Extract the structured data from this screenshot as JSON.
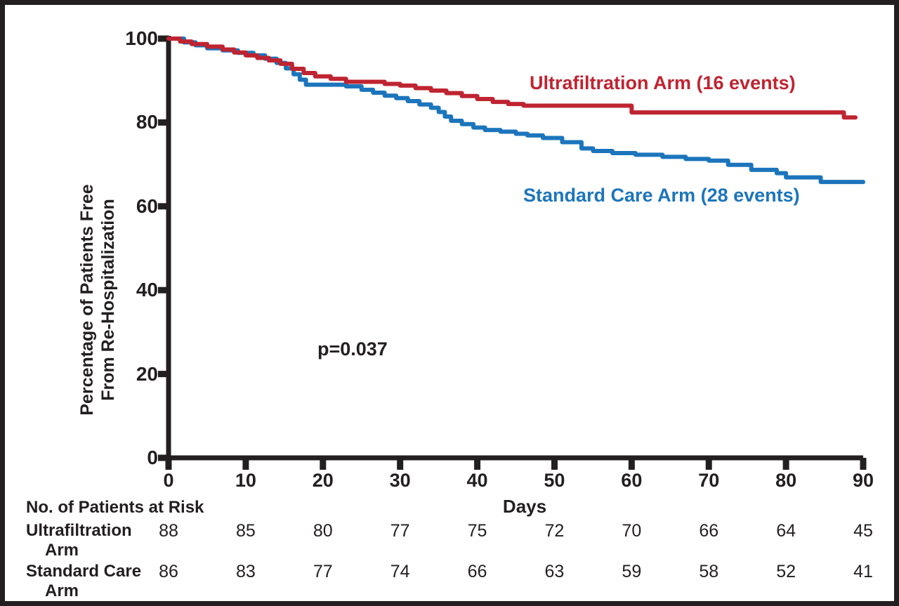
{
  "colors": {
    "ink": "#231f20",
    "red": "#bf2431",
    "blue": "#1c75bc",
    "background": "#ffffff"
  },
  "chart_data": {
    "type": "line",
    "subtype": "kaplan-meier-step",
    "title": "",
    "xlabel": "Days",
    "ylabel_line1": "Percentage of Patients Free",
    "ylabel_line2": "From Re-Hospitalization",
    "xlim": [
      0,
      90
    ],
    "ylim": [
      0,
      100
    ],
    "x_ticks": [
      0,
      10,
      20,
      30,
      40,
      50,
      60,
      70,
      80,
      90
    ],
    "y_ticks": [
      0,
      20,
      40,
      60,
      80,
      100
    ],
    "grid": "off",
    "legend_position": "inline-curve-labels",
    "annotation": "p=0.037",
    "series": [
      {
        "name": "Ultrafiltration Arm",
        "label": "Ultrafiltration Arm (16 events)",
        "events": 16,
        "color": "#bf2431",
        "x_end": 89,
        "x": [
          0,
          1.5,
          3,
          5,
          7,
          8.5,
          10,
          11.5,
          13,
          14.5,
          16,
          17.5,
          19,
          21,
          23,
          28,
          30,
          32,
          34,
          36,
          38,
          40,
          42,
          44,
          46,
          60,
          87.5
        ],
        "y": [
          100,
          99.3,
          98.7,
          98.1,
          97.4,
          96.7,
          96,
          95.4,
          94.8,
          94,
          92.8,
          91.8,
          91,
          90.4,
          89.7,
          89.2,
          88.8,
          88.2,
          87.6,
          87,
          86.3,
          85.6,
          84.9,
          84.4,
          84,
          82.4,
          81.2
        ]
      },
      {
        "name": "Standard Care Arm",
        "label": "Standard Care Arm (28 events)",
        "events": 28,
        "color": "#1c75bc",
        "x_end": 90,
        "x": [
          0,
          2,
          3.5,
          5,
          7,
          9,
          11,
          12.5,
          14,
          15.2,
          16.2,
          17,
          17.8,
          23,
          25,
          26.5,
          28,
          29.5,
          31,
          32.5,
          34,
          35,
          35.8,
          36.6,
          38,
          39.5,
          41,
          43,
          45,
          46.5,
          48.5,
          51,
          53.5,
          55,
          57.5,
          60.5,
          64,
          67,
          70,
          72.5,
          75.5,
          78.8,
          80,
          84.5
        ],
        "y": [
          100,
          99.1,
          98.4,
          97.7,
          97.2,
          96.6,
          96,
          95.2,
          94.2,
          92.9,
          91.5,
          90.2,
          89,
          88.6,
          87.8,
          87.1,
          86.4,
          85.8,
          85.1,
          84.3,
          83.5,
          82.5,
          81.4,
          80.4,
          79.6,
          78.8,
          78.2,
          77.8,
          77.3,
          76.9,
          76.3,
          75.3,
          73.8,
          73.2,
          72.7,
          72.3,
          71.8,
          71.3,
          70.9,
          69.9,
          68.7,
          67.9,
          66.9,
          65.8
        ]
      }
    ]
  },
  "risk_table": {
    "title": "No. of Patients at Risk",
    "days": [
      0,
      10,
      20,
      30,
      40,
      50,
      60,
      70,
      80,
      90
    ],
    "rows": [
      {
        "label_line1": "Ultrafiltration",
        "label_line2": "Arm",
        "counts": [
          88,
          85,
          80,
          77,
          75,
          72,
          70,
          66,
          64,
          45
        ]
      },
      {
        "label_line1": "Standard Care",
        "label_line2": "Arm",
        "counts": [
          86,
          83,
          77,
          74,
          66,
          63,
          59,
          58,
          52,
          41
        ]
      }
    ]
  }
}
